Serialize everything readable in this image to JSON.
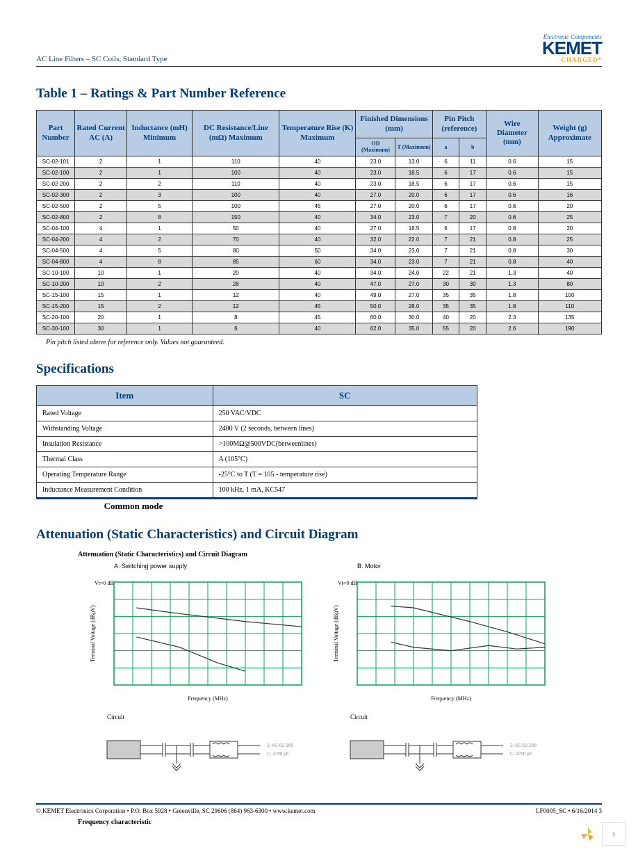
{
  "header": {
    "breadcrumb": "AC Line Filters – SC Coils, Standard Type",
    "logo_top": "Electronic Components",
    "logo_main": "KEMET",
    "logo_sub": "CHARGED*"
  },
  "table1": {
    "title": "Table 1 – Ratings & Part Number Reference",
    "headers": [
      "Part Number",
      "Rated Current AC (A)",
      "Inductance (mH) Minimum",
      "DC Resistance/Line (mΩ) Maximum",
      "Temperature Rise (K) Maximum"
    ],
    "h_fin": "Finished Dimensions (mm)",
    "h_fin_sub": [
      "OD (Maximum)",
      "T (Maximum)"
    ],
    "h_pin": "Pin Pitch (reference)",
    "h_pin_sub": [
      "a",
      "b"
    ],
    "h_wire": "Wire Diameter (mm)",
    "h_weight": "Weight (g) Approximate",
    "rows": [
      [
        "SC-02-101",
        "2",
        "1",
        "110",
        "40",
        "23.0",
        "13.0",
        "6",
        "11",
        "0.6",
        "15"
      ],
      [
        "SC-02-100",
        "2",
        "1",
        "100",
        "40",
        "23.0",
        "18.5",
        "6",
        "17",
        "0.6",
        "15"
      ],
      [
        "SC-02-200",
        "2",
        "2",
        "110",
        "40",
        "23.0",
        "18.5",
        "6",
        "17",
        "0.6",
        "15"
      ],
      [
        "SC-02-300",
        "2",
        "3",
        "100",
        "40",
        "27.0",
        "20.0",
        "6",
        "17",
        "0.6",
        "16"
      ],
      [
        "SC-02-500",
        "2",
        "5",
        "100",
        "45",
        "27.0",
        "20.0",
        "6",
        "17",
        "0.6",
        "20"
      ],
      [
        "SC-02-800",
        "2",
        "8",
        "150",
        "40",
        "34.0",
        "23.0",
        "7",
        "20",
        "0.6",
        "25"
      ],
      [
        "SC-04-100",
        "4",
        "1",
        "50",
        "40",
        "27.0",
        "18.5",
        "6",
        "17",
        "0.8",
        "20"
      ],
      [
        "SC-04-200",
        "4",
        "2",
        "70",
        "40",
        "32.0",
        "22.0",
        "7",
        "21",
        "0.8",
        "25"
      ],
      [
        "SC-04-500",
        "4",
        "5",
        "80",
        "50",
        "34.0",
        "23.0",
        "7",
        "21",
        "0.8",
        "30"
      ],
      [
        "SC-04-800",
        "4",
        "8",
        "85",
        "60",
        "34.0",
        "23.0",
        "7",
        "21",
        "0.8",
        "40"
      ],
      [
        "SC-10-100",
        "10",
        "1",
        "20",
        "40",
        "34.0",
        "24.0",
        "22",
        "21",
        "1.3",
        "40"
      ],
      [
        "SC-10-200",
        "10",
        "2",
        "28",
        "40",
        "47.0",
        "27.0",
        "30",
        "30",
        "1.3",
        "80"
      ],
      [
        "SC-15-100",
        "15",
        "1",
        "12",
        "40",
        "49.0",
        "27.0",
        "35",
        "35",
        "1.8",
        "100"
      ],
      [
        "SC-15-200",
        "15",
        "2",
        "12",
        "45",
        "50.0",
        "28.0",
        "35",
        "35",
        "1.8",
        "110"
      ],
      [
        "SC-20-100",
        "20",
        "1",
        "8",
        "45",
        "60.0",
        "30.0",
        "40",
        "20",
        "2.3",
        "135"
      ],
      [
        "SC-30-100",
        "30",
        "1",
        "6",
        "40",
        "62.0",
        "35.0",
        "55",
        "20",
        "2.6",
        "190"
      ]
    ],
    "footnote": "Pin pitch listed above for reference only. Values not guaranteed."
  },
  "specs": {
    "title": "Specifications",
    "h_item": "Item",
    "h_sc": "SC",
    "rows": [
      [
        "Rated Voltage",
        "250 VAC/VDC"
      ],
      [
        "Withstanding Voltage",
        "2400 V (2 seconds, between lines)"
      ],
      [
        "Insulation Resistance",
        ">100MΩ@500VDC(betweenlines)"
      ],
      [
        "Thermal Class",
        "A (105°C)"
      ],
      [
        "Operating Temperature Range",
        "-25°C to T (T = 105 - temperature rise)"
      ],
      [
        "Inductance Measurement Condition",
        "100 kHz, 1 mA, KC547"
      ]
    ],
    "common_mode": "Common mode"
  },
  "atten": {
    "title": "Attenuation (Static Characteristics) and Circuit Diagram",
    "subtitle": "Attenuation (Static Characteristics) and Circuit Diagram",
    "chartA": {
      "title": "A. Switching power supply",
      "ylabel": "Terminal Voltage (dBμV)",
      "xlabel": "Frequency (MHz)",
      "ytop": "Vt=0 dB",
      "grid_color": "#00a651",
      "line_color": "#333333",
      "xlim": [
        0,
        10
      ],
      "ylim": [
        0,
        6
      ],
      "xtick": [
        0,
        1,
        2,
        3,
        4,
        5,
        6,
        7,
        8,
        9,
        10
      ],
      "ytick": [
        0,
        1,
        2,
        3,
        4,
        5,
        6
      ],
      "lines": [
        [
          [
            1.2,
            4.5
          ],
          [
            3.2,
            4.2
          ],
          [
            7,
            3.7
          ],
          [
            10,
            3.4
          ]
        ],
        [
          [
            1.2,
            2.8
          ],
          [
            3.5,
            2.2
          ],
          [
            5.5,
            1.3
          ],
          [
            7,
            0.8
          ]
        ]
      ]
    },
    "chartB": {
      "title": "B. Motor",
      "ylabel": "Terminal Voltage (dBμV)",
      "xlabel": "Frequency (MHz)",
      "ytop": "Vt=0 dB",
      "grid_color": "#00a651",
      "line_color": "#333333",
      "xlim": [
        0,
        10
      ],
      "ylim": [
        0,
        6
      ],
      "xtick": [
        0,
        1,
        2,
        3,
        4,
        5,
        6,
        7,
        8,
        9,
        10
      ],
      "ytick": [
        0,
        1,
        2,
        3,
        4,
        5,
        6
      ],
      "lines": [
        [
          [
            1.8,
            4.6
          ],
          [
            3,
            4.5
          ],
          [
            6,
            3.7
          ],
          [
            8,
            3.1
          ],
          [
            10,
            2.4
          ]
        ],
        [
          [
            1.8,
            2.5
          ],
          [
            3,
            2.2
          ],
          [
            5,
            2.0
          ],
          [
            7,
            2.3
          ],
          [
            8.5,
            2.1
          ],
          [
            10,
            2.2
          ]
        ]
      ]
    },
    "circuit_label": "Circuit",
    "circuit_notes": [
      "3: SC-02-200",
      "C: 4700 pF"
    ]
  },
  "footer": {
    "left": "© KEMET Electronics Corporation • P.O. Box 5928 • Greenville, SC 29606 (864) 963-6300 • www.kemet.com",
    "right": "LF0005_SC • 6/16/2014    3",
    "freq": "Frequency characteristic"
  }
}
